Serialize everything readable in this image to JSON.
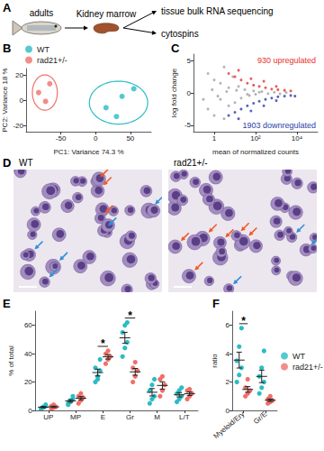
{
  "diagram": {
    "panel": "A",
    "subject": "adults",
    "tissue": "Kidney marrow",
    "outputs": [
      "tissue bulk RNA sequencing",
      "cytospins"
    ]
  },
  "micrographs": {
    "panel": "D",
    "images": [
      "WT",
      "rad21+/-"
    ]
  },
  "chart_data": [
    {
      "panel": "B",
      "type": "scatter",
      "xlabel": "PC1: Variance 74.3 %",
      "ylabel": "PC2: Variance 18 %",
      "xlim": [
        -100,
        80
      ],
      "xticks": [
        -50,
        0,
        50
      ],
      "ylim": [
        -25,
        25
      ],
      "yticks": [
        -20,
        0,
        20
      ],
      "legend": "top left",
      "series": [
        {
          "name": "WT",
          "color": "#2bbcc4",
          "x": [
            15,
            38,
            55,
            30
          ],
          "values": [
            -6,
            3,
            9,
            -13
          ]
        },
        {
          "name": "rad21+/-",
          "color": "#f0706a",
          "x": [
            -82,
            -66,
            -72
          ],
          "values": [
            6,
            13,
            -1
          ]
        }
      ],
      "ellipses": [
        {
          "series": "WT",
          "center": [
            33,
            -2
          ],
          "radii": [
            42,
            17
          ]
        },
        {
          "series": "rad21+/-",
          "center": [
            -73,
            6
          ],
          "radii": [
            18,
            14
          ]
        }
      ]
    },
    {
      "panel": "C",
      "type": "scatter",
      "log": "x",
      "xlabel": "mean of normalized counts",
      "ylabel": "log fold change",
      "xlim": [
        0.1,
        100000
      ],
      "xticks": [
        1,
        {
          "value": 100,
          "label": "10²"
        },
        {
          "value": 10000,
          "label": "10⁴"
        }
      ],
      "ylim": [
        -6,
        6
      ],
      "yticks": [
        -5,
        0,
        5
      ],
      "series": [
        {
          "color": "#a0a0a0",
          "x": [
            0.5,
            0.5,
            1,
            1,
            2,
            2,
            3,
            3,
            5,
            5,
            8,
            10,
            15,
            20,
            30,
            50,
            80,
            100,
            200,
            400,
            800,
            1500,
            3000,
            0.3,
            0.8,
            1.5,
            4,
            12,
            40,
            150
          ],
          "values": [
            3,
            -2.5,
            2,
            -3.5,
            1.5,
            -1,
            4,
            -4,
            0.8,
            -2,
            2.5,
            -1.5,
            1,
            -0.8,
            0.5,
            -0.4,
            0.3,
            -0.2,
            0.2,
            -0.1,
            0.1,
            -0.15,
            0.05,
            -1,
            0.5,
            -0.5,
            0.2,
            0.4,
            -0.2,
            0.1
          ]
        },
        {
          "color": "#e8312a",
          "x": [
            5,
            10,
            20,
            40,
            80,
            150,
            300,
            600,
            1200,
            2500,
            5000,
            15,
            60,
            250,
            1000
          ],
          "values": [
            3,
            2.5,
            2,
            1.5,
            1.2,
            1,
            0.8,
            0.6,
            0.5,
            0.4,
            0.3,
            3.5,
            2.2,
            1.8,
            1
          ]
        },
        {
          "color": "#2c3fa8",
          "x": [
            5,
            10,
            20,
            40,
            80,
            150,
            300,
            600,
            1200,
            2500,
            5000,
            15,
            60,
            250,
            1000,
            8000
          ],
          "values": [
            -3.5,
            -3,
            -2.5,
            -2,
            -1.6,
            -1.3,
            -1,
            -0.8,
            -0.6,
            -0.5,
            -0.4,
            -4,
            -2.8,
            -2,
            -1.2,
            -0.5
          ]
        }
      ],
      "annotations": [
        {
          "text": "930 upregulated",
          "color": "#e8312a"
        },
        {
          "text": "1903 downregulated",
          "color": "#2c3fa8"
        }
      ]
    },
    {
      "panel": "E",
      "type": "dot",
      "categories": [
        "UP",
        "MP",
        "E",
        "Gr",
        "M",
        "L/T"
      ],
      "ylabel": "% of total",
      "ylim": [
        0,
        70
      ],
      "yticks": [
        0,
        20,
        40,
        60
      ],
      "series": [
        {
          "name": "WT",
          "color": "#2bbcc4",
          "values": [
            [
              1,
              2,
              3,
              1.5,
              2.5,
              4
            ],
            [
              4,
              6,
              8,
              5,
              7,
              10
            ],
            [
              20,
              24,
              28,
              30,
              22,
              36
            ],
            [
              38,
              44,
              48,
              55,
              60,
              62
            ],
            [
              5,
              8,
              10,
              14,
              18,
              22
            ],
            [
              6,
              8,
              10,
              12,
              14,
              16
            ]
          ],
          "means": [
            2.3,
            6.7,
            26.7,
            51.2,
            12.8,
            11
          ],
          "errors": [
            0.5,
            0.9,
            2.4,
            3.9,
            2.6,
            1.5
          ]
        },
        {
          "name": "rad21+/-",
          "color": "#f0706a",
          "values": [
            [
              1,
              2,
              2.5,
              3,
              4
            ],
            [
              5,
              7,
              9,
              10,
              12
            ],
            [
              33,
              36,
              38,
              40,
              42
            ],
            [
              20,
              24,
              28,
              30,
              34
            ],
            [
              10,
              14,
              18,
              22,
              24
            ],
            [
              8,
              10,
              12,
              14,
              15
            ]
          ],
          "means": [
            2.5,
            8.6,
            37.8,
            27.2,
            17.6,
            11.8
          ],
          "errors": [
            0.5,
            1.2,
            1.6,
            2.4,
            2.6,
            1.3
          ]
        }
      ],
      "significance": [
        {
          "category": "E",
          "label": "*"
        },
        {
          "category": "Gr",
          "label": "*"
        }
      ]
    },
    {
      "panel": "F",
      "type": "dot",
      "categories": [
        "Myeloid/Ery",
        "Gr/E"
      ],
      "ylabel": "ratio",
      "ylim": [
        0,
        7
      ],
      "yticks": [
        0,
        2,
        4,
        6
      ],
      "legend": "right",
      "series": [
        {
          "name": "WT",
          "color": "#2bbcc4",
          "values": [
            [
              2.0,
              2.5,
              3.0,
              3.5,
              4.5,
              5.8
            ],
            [
              1.2,
              1.6,
              2.0,
              2.4,
              3.0,
              4.2
            ]
          ],
          "means": [
            3.55,
            2.4
          ],
          "errors": [
            0.56,
            0.44
          ]
        },
        {
          "name": "rad21+/-",
          "color": "#f0706a",
          "values": [
            [
              1.0,
              1.2,
              1.4,
              1.6,
              2.2
            ],
            [
              0.5,
              0.6,
              0.7,
              0.8,
              1.0
            ]
          ],
          "means": [
            1.48,
            0.72
          ],
          "errors": [
            0.2,
            0.09
          ]
        }
      ],
      "significance": [
        {
          "category": "Myeloid/Ery",
          "label": "*"
        }
      ]
    }
  ]
}
